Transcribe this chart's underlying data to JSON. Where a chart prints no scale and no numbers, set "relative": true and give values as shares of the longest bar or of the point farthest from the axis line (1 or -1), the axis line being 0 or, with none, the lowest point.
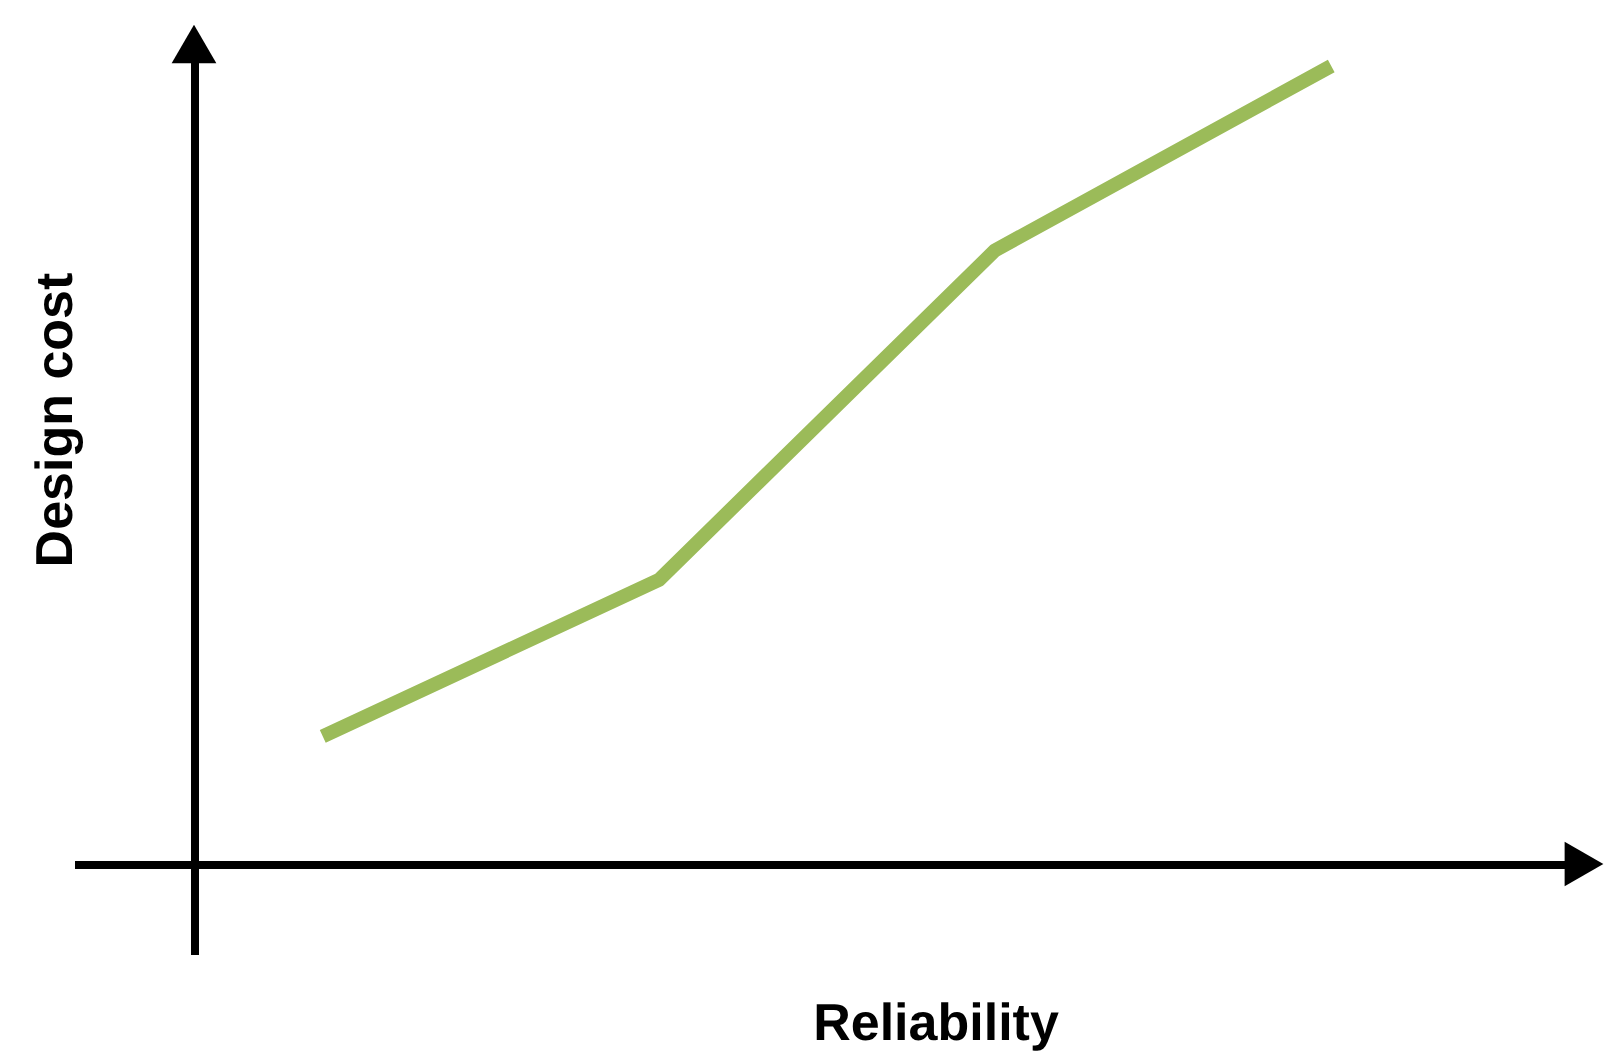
{
  "chart_data": {
    "type": "line",
    "relative": true,
    "xlabel": "Reliability",
    "ylabel": "Design cost",
    "categories": [
      null,
      null,
      null,
      null
    ],
    "series": [
      {
        "color": "#9bbb59",
        "values": [
          0.16,
          0.356,
          0.769,
          1
        ]
      }
    ],
    "grid": false,
    "marker": "none",
    "line_style": "solid"
  }
}
